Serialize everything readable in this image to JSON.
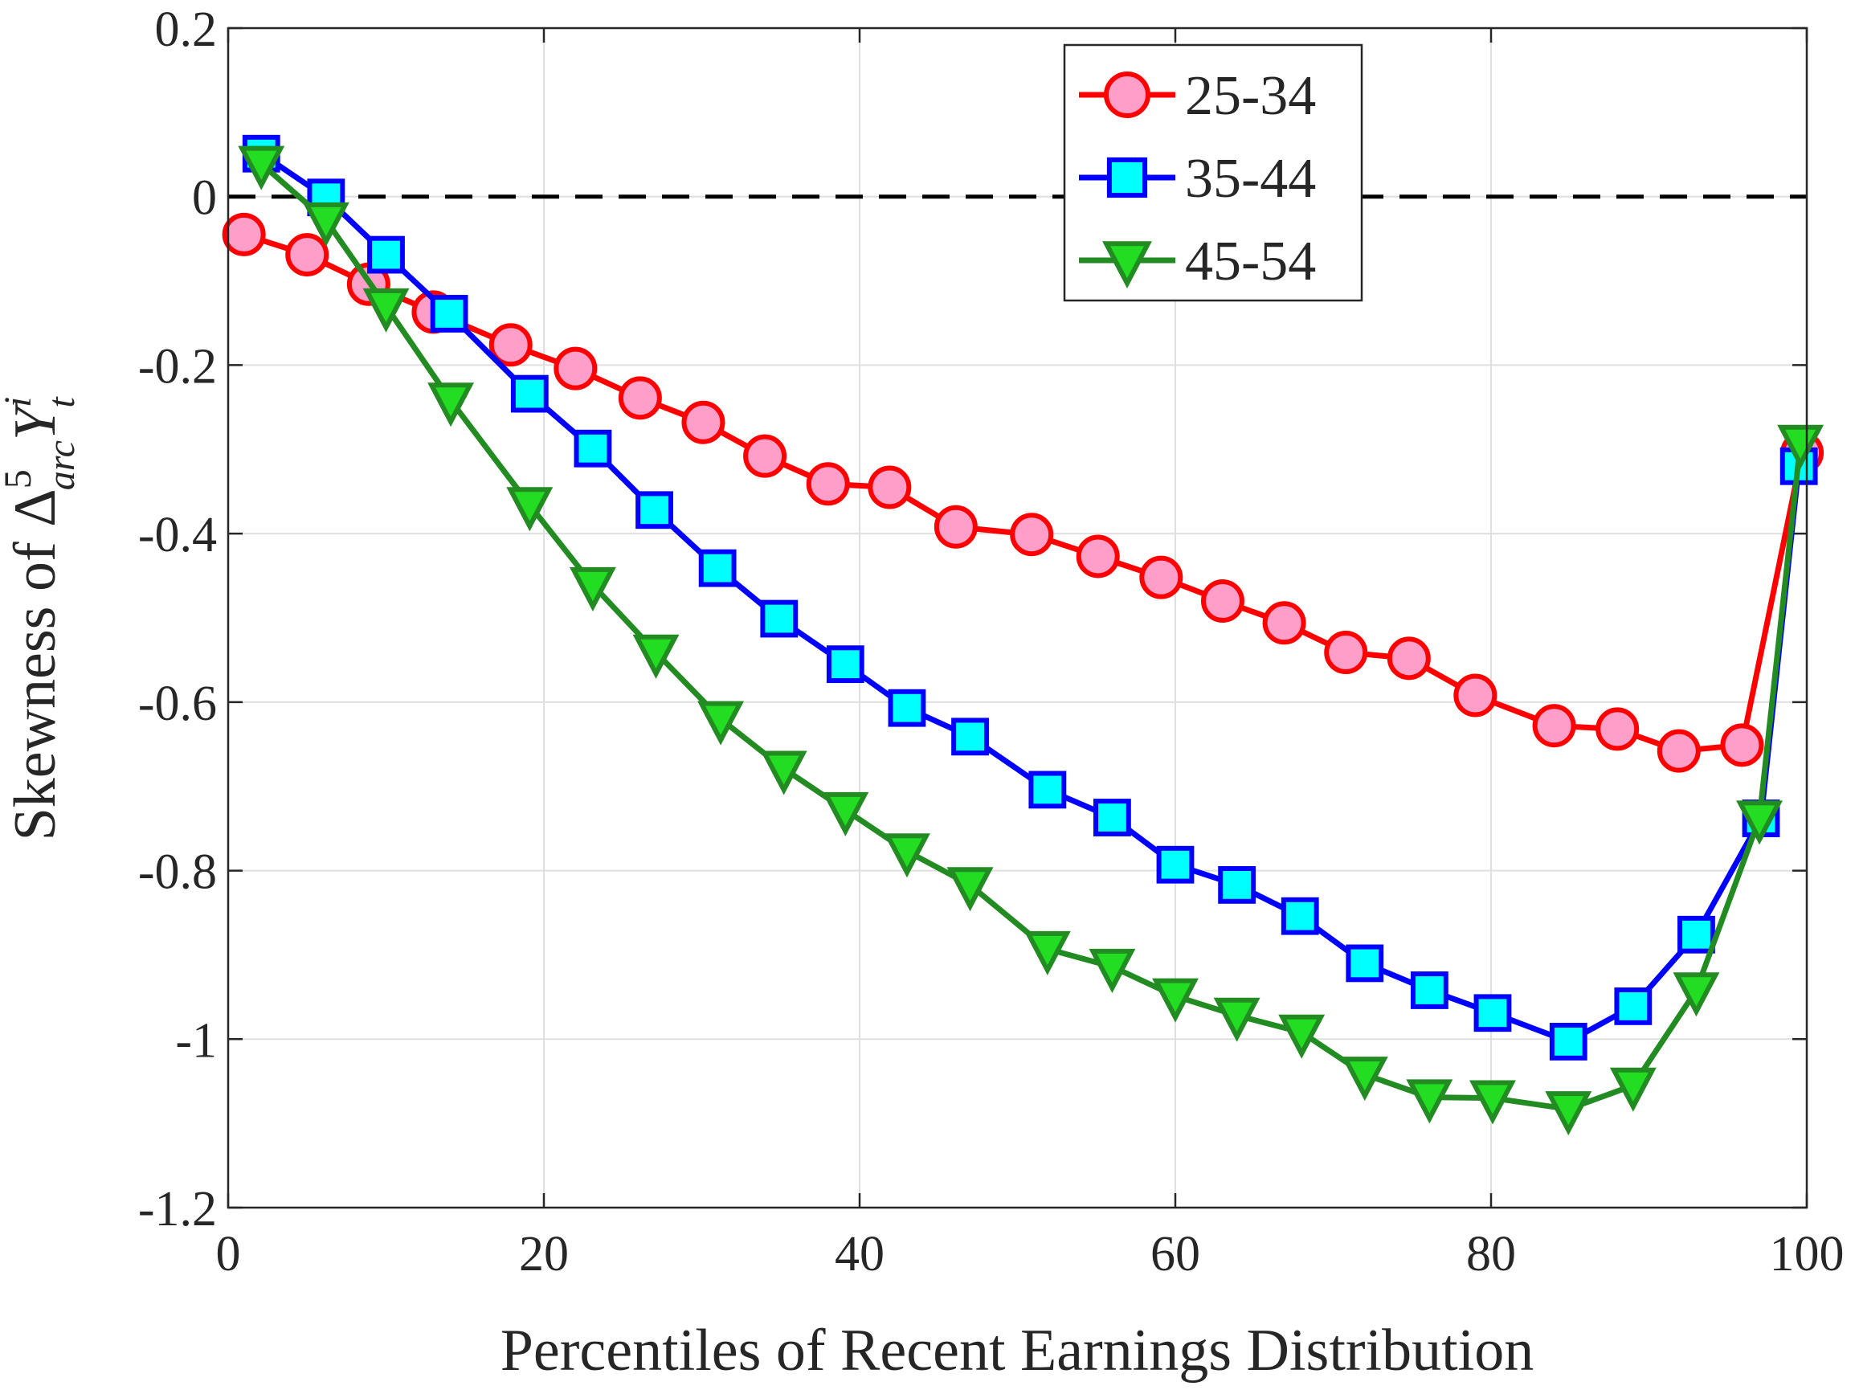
{
  "chart_data": {
    "type": "line",
    "xlabel": "Percentiles of Recent Earnings Distribution",
    "ylabel": {
      "text": "Skewness of ",
      "delta": "Δ",
      "delta_sup": "5",
      "delta_sub": "arc",
      "var": "Y",
      "var_sup": "i",
      "var_sub": "t"
    },
    "xlim": [
      0,
      100
    ],
    "xticks": [
      0,
      20,
      40,
      60,
      80,
      100
    ],
    "ylim": [
      -1.2,
      0.2
    ],
    "yticks": [
      -1.2,
      -1,
      -0.8,
      -0.6,
      -0.4,
      -0.2,
      0,
      0.2
    ],
    "grid": true,
    "reference_line": 0,
    "legend": "upper-center-right",
    "series": [
      {
        "name": "25-34",
        "color": "#ff0000",
        "marker": "circle",
        "marker_fill": "#ff9ec8",
        "x": [
          1,
          5,
          8.9,
          13,
          17.9,
          22,
          26.1,
          30.1,
          34,
          38,
          41.9,
          46.1,
          50.9,
          55.1,
          59.1,
          63,
          66.9,
          70.8,
          74.8,
          79,
          84,
          88,
          91.9,
          95.9,
          99.7
        ],
        "values": [
          -0.045,
          -0.069,
          -0.104,
          -0.137,
          -0.176,
          -0.204,
          -0.239,
          -0.268,
          -0.308,
          -0.341,
          -0.345,
          -0.392,
          -0.401,
          -0.427,
          -0.452,
          -0.48,
          -0.506,
          -0.541,
          -0.548,
          -0.592,
          -0.628,
          -0.632,
          -0.658,
          -0.651,
          -0.304
        ]
      },
      {
        "name": "35-44",
        "color": "#0000ff",
        "marker": "square",
        "marker_fill": "#00ffff",
        "x": [
          2.1,
          6.2,
          10,
          14,
          19.1,
          23.1,
          27,
          31,
          34.9,
          39.1,
          43,
          47,
          51.9,
          56,
          60,
          63.9,
          67.9,
          72,
          76.1,
          80.1,
          84.9,
          89,
          93,
          97.1,
          99.5
        ],
        "values": [
          0.051,
          -0.001,
          -0.069,
          -0.139,
          -0.234,
          -0.299,
          -0.372,
          -0.441,
          -0.501,
          -0.555,
          -0.607,
          -0.641,
          -0.704,
          -0.737,
          -0.793,
          -0.817,
          -0.854,
          -0.91,
          -0.942,
          -0.969,
          -1.003,
          -0.961,
          -0.876,
          -0.738,
          -0.32
        ]
      },
      {
        "name": "45-54",
        "color": "#228b22",
        "marker": "triangle-down",
        "marker_fill": "#22dd22",
        "x": [
          2.1,
          6.2,
          10,
          14.1,
          19.1,
          23.1,
          27.1,
          31.2,
          35.2,
          39.1,
          43,
          47,
          51.9,
          56,
          60,
          63.9,
          68,
          72,
          76.1,
          80.1,
          84.9,
          89,
          93,
          97,
          99.6
        ],
        "values": [
          0.039,
          -0.028,
          -0.13,
          -0.242,
          -0.366,
          -0.461,
          -0.541,
          -0.62,
          -0.679,
          -0.728,
          -0.777,
          -0.817,
          -0.893,
          -0.914,
          -0.949,
          -0.972,
          -0.992,
          -1.042,
          -1.069,
          -1.07,
          -1.083,
          -1.055,
          -0.942,
          -0.738,
          -0.292
        ]
      }
    ]
  }
}
